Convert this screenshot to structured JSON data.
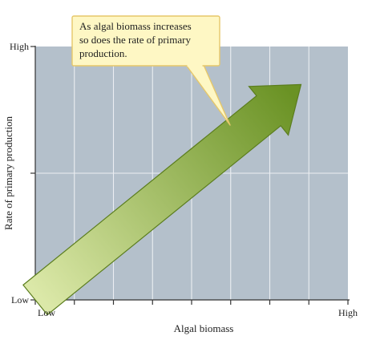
{
  "chart_data": {
    "type": "line",
    "title": "",
    "xlabel": "Algal biomass",
    "ylabel": "Rate of primary production",
    "x_ticks": [
      "Low",
      "High"
    ],
    "y_ticks": [
      "Low",
      "High"
    ],
    "xlim": [
      0,
      1
    ],
    "ylim": [
      0,
      1
    ],
    "grid": true,
    "series": [
      {
        "x": [
          0,
          0.85
        ],
        "y": [
          0,
          0.85
        ]
      }
    ],
    "annotations": [
      {
        "lines": [
          "As algal biomass increases",
          "so does the rate of primary",
          "production."
        ]
      }
    ]
  },
  "colors": {
    "plot_background": "#b4c0cb",
    "grid": "#ebeef2",
    "arrow_light": "#dbe8a8",
    "arrow_dark": "#6a9224",
    "callout_fill": "#fef7c4",
    "callout_stroke": "#e6c76a"
  }
}
